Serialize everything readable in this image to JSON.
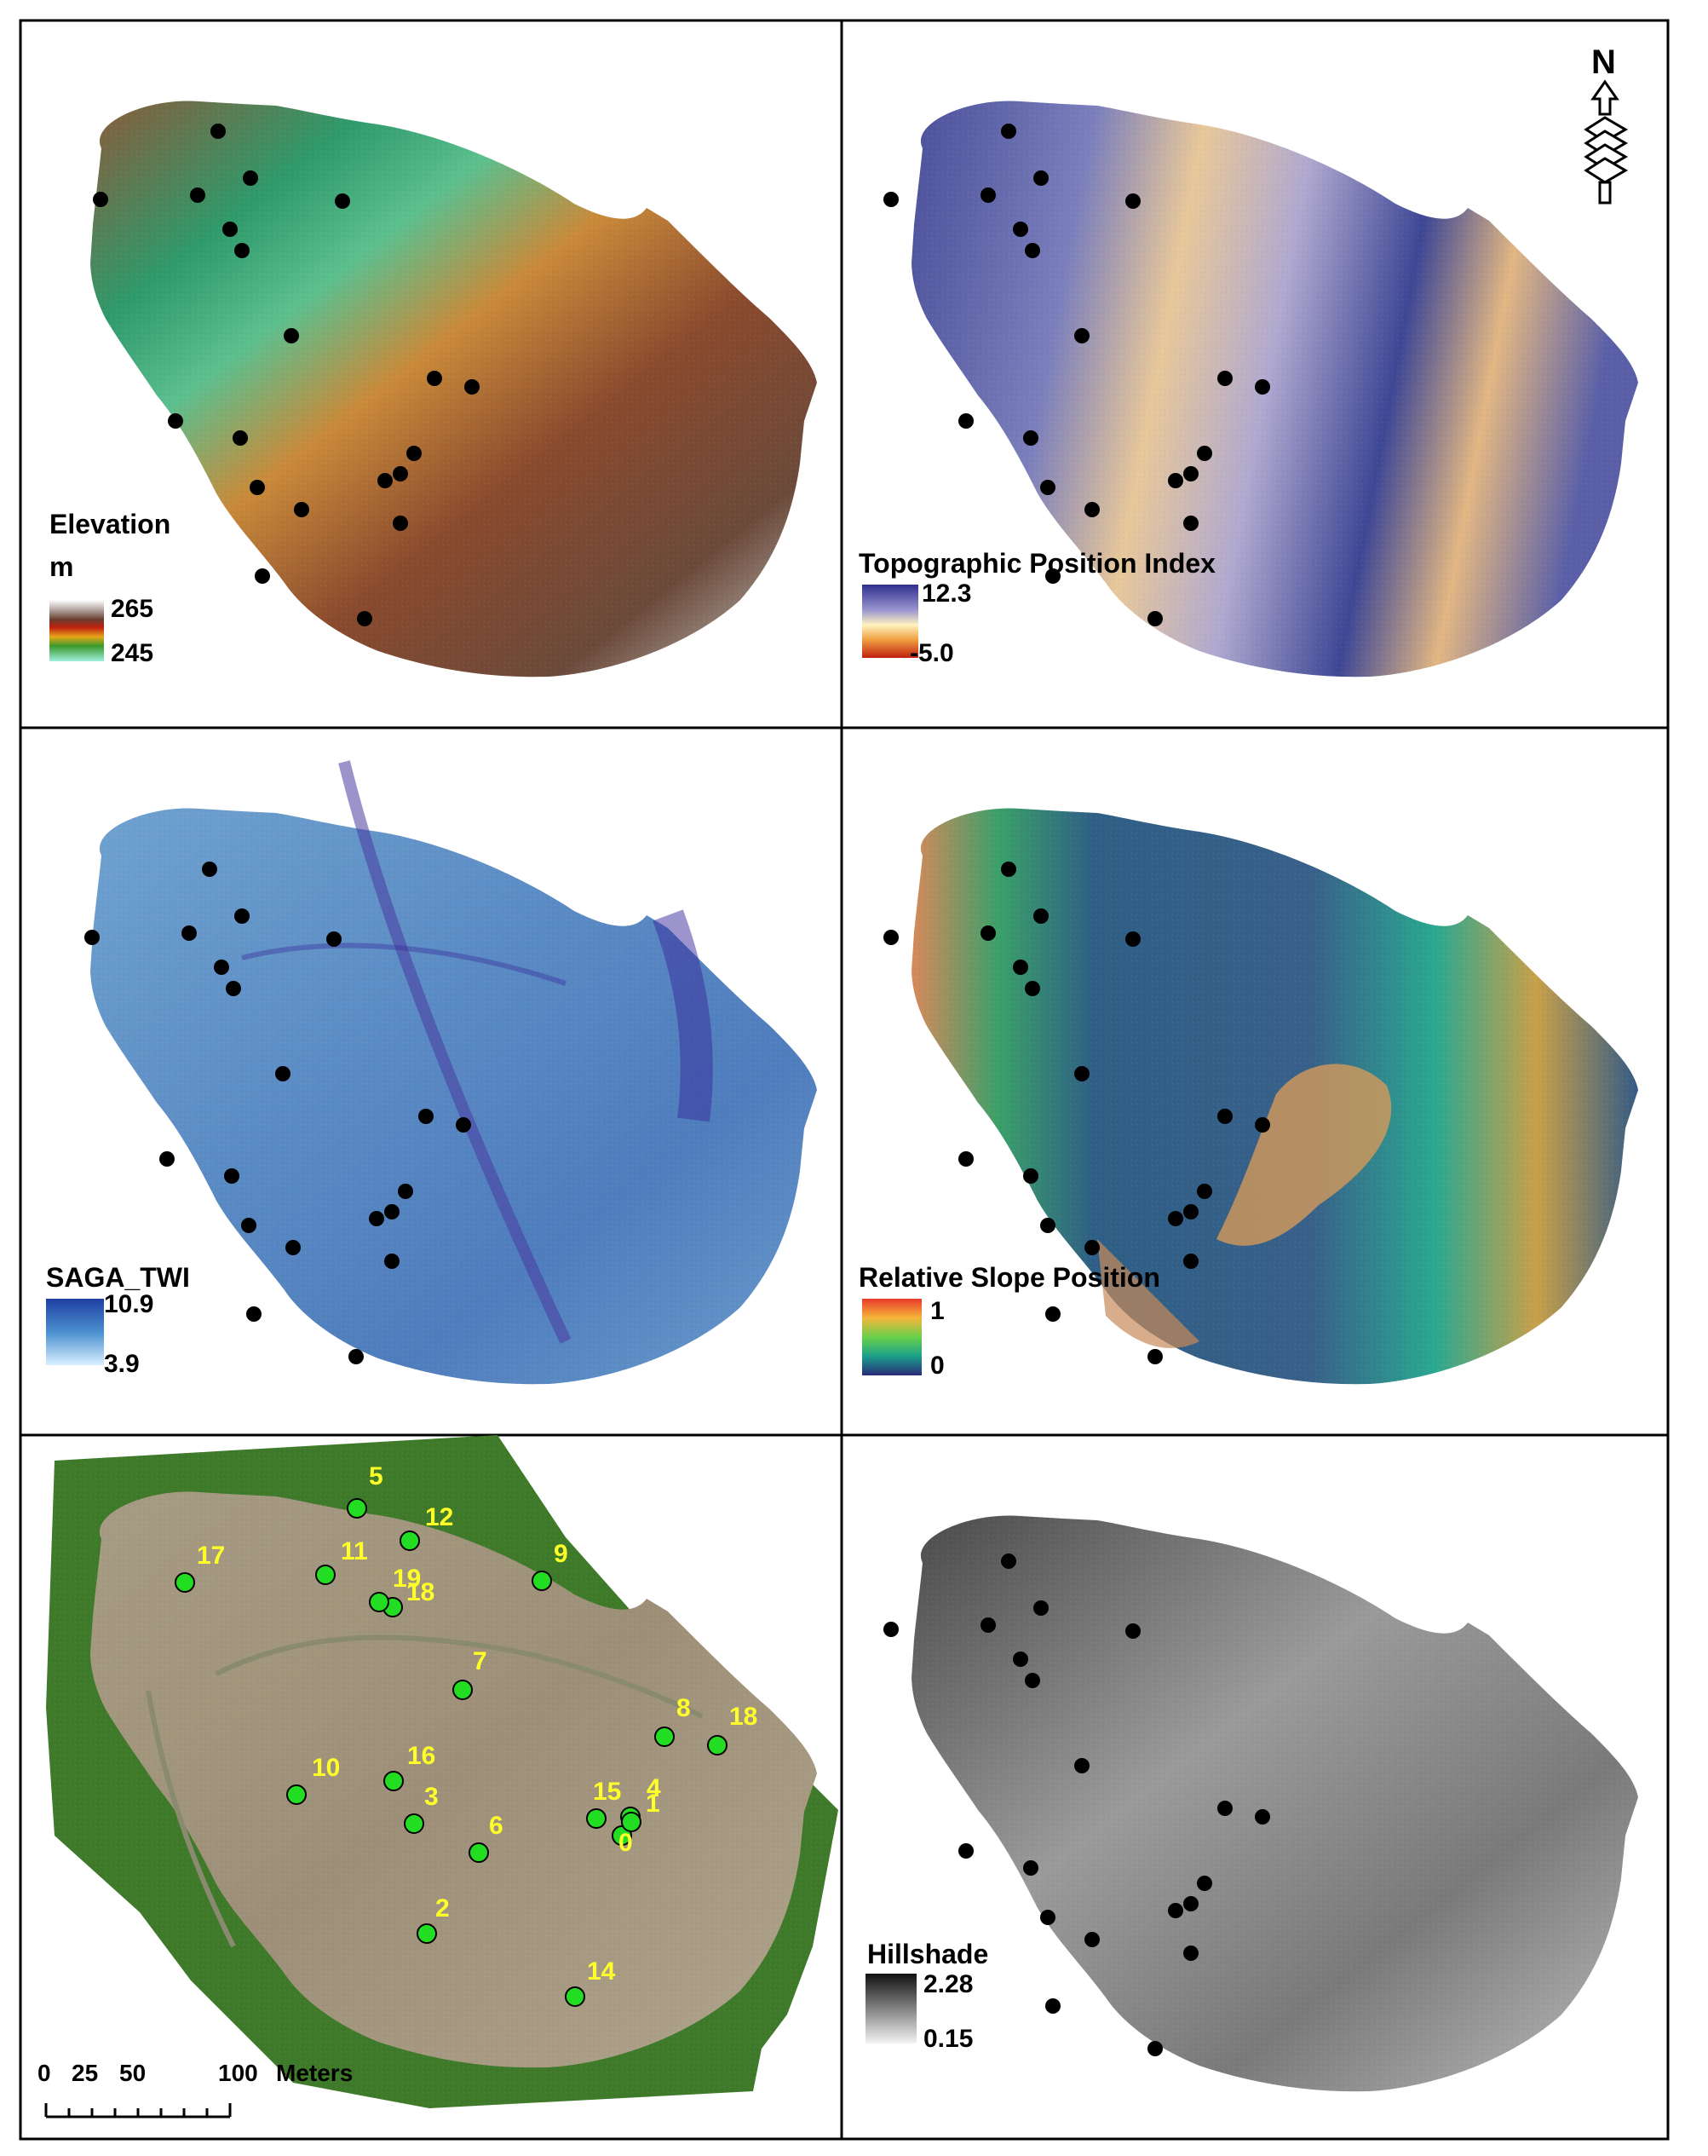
{
  "panels": {
    "elevation": {
      "title": "Elevation",
      "unit": "m",
      "max": "265",
      "min": "245"
    },
    "tpi": {
      "title": "Topographic Position Index",
      "max": "12.3",
      "min": "-5.0"
    },
    "twi": {
      "title": "SAGA_TWI",
      "max": "10.9",
      "min": "3.9"
    },
    "rsp": {
      "title": "Relative Slope Position",
      "max": "1",
      "min": "0"
    },
    "orthophoto": {
      "site_labels": [
        "0",
        "1",
        "2",
        "3",
        "4",
        "5",
        "6",
        "7",
        "8",
        "9",
        "10",
        "11",
        "12",
        "14",
        "15",
        "16",
        "17",
        "18",
        "19"
      ]
    },
    "hillshade": {
      "title": "Hillshade",
      "max": "2.28",
      "min": "0.15"
    }
  },
  "north_arrow": {
    "label": "N",
    "icon": "north-arrow-icon"
  },
  "scale_bar": {
    "ticks": [
      "0",
      "25",
      "50",
      "100"
    ],
    "unit": "Meters"
  },
  "colors": {
    "sample_point": "#000000",
    "site_point": "#22dd22",
    "site_label": "#ffff2a",
    "panel_border": "#000000"
  }
}
